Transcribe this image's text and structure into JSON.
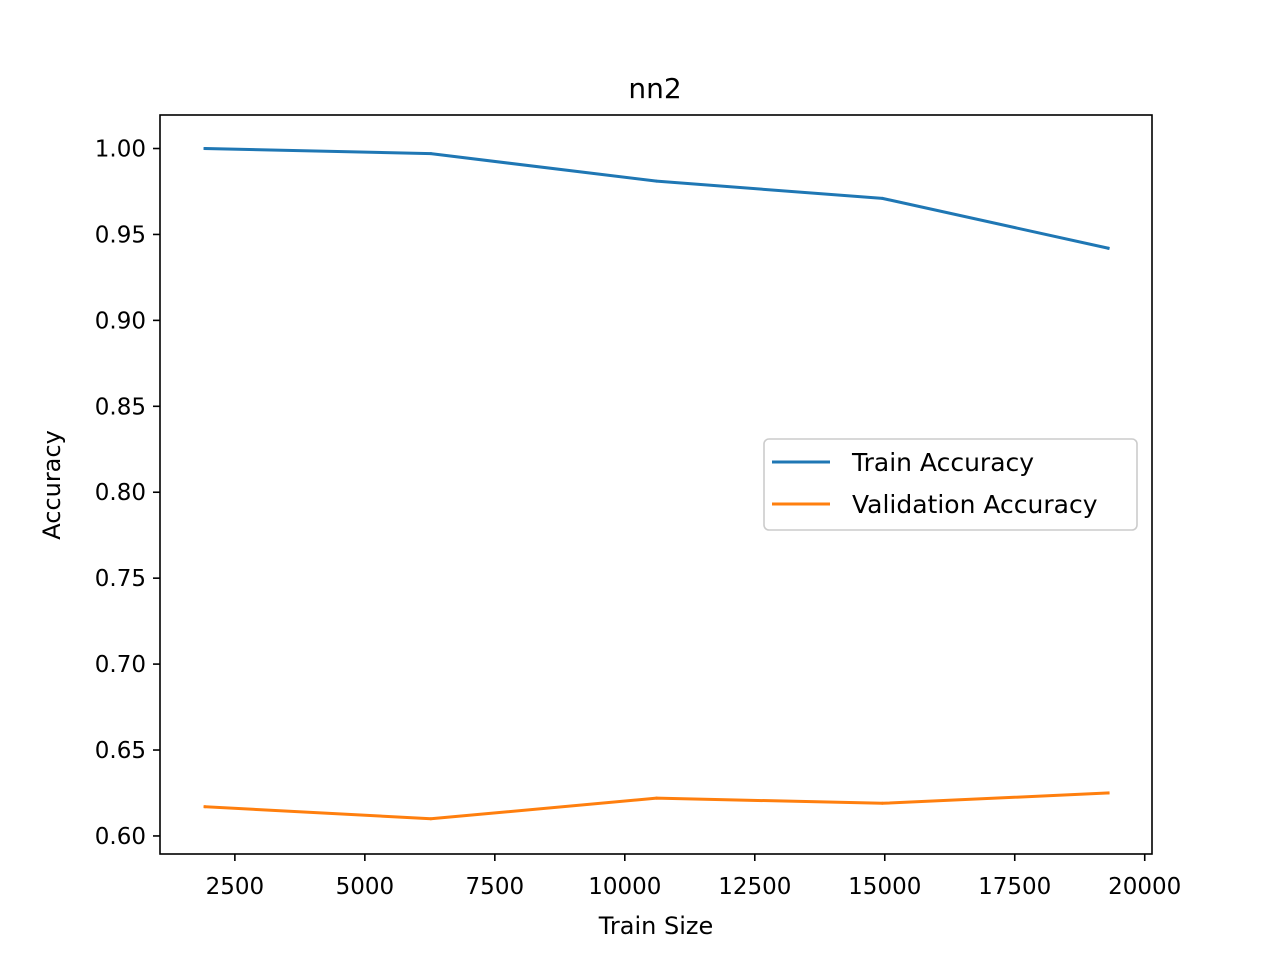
{
  "chart_data": {
    "type": "line",
    "title": "nn2",
    "xlabel": "Train Size",
    "ylabel": "Accuracy",
    "xlim": [
      1060,
      20140
    ],
    "ylim": [
      0.5895,
      1.0195
    ],
    "xticks": [
      2500,
      5000,
      7500,
      10000,
      12500,
      15000,
      17500,
      20000
    ],
    "yticks": [
      0.6,
      0.65,
      0.7,
      0.75,
      0.8,
      0.85,
      0.9,
      0.95,
      1.0
    ],
    "ytick_decimals": 2,
    "grid": false,
    "legend_position": "center-right",
    "x": [
      1927,
      6269,
      10611,
      14953,
      19295
    ],
    "series": [
      {
        "name": "Train Accuracy",
        "color": "#1f77b4",
        "values": [
          1.0,
          0.997,
          0.981,
          0.971,
          0.942
        ]
      },
      {
        "name": "Validation Accuracy",
        "color": "#ff7f0e",
        "values": [
          0.617,
          0.61,
          0.622,
          0.619,
          0.625
        ]
      }
    ]
  }
}
